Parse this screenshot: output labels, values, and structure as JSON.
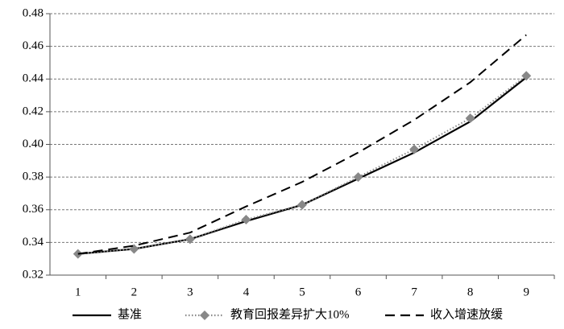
{
  "chart_data": {
    "type": "line",
    "categories": [
      "1",
      "2",
      "3",
      "4",
      "5",
      "6",
      "7",
      "8",
      "9"
    ],
    "series": [
      {
        "name": "基准",
        "color": "#000000",
        "style": "solid",
        "marker": "none",
        "values": [
          0.333,
          0.336,
          0.342,
          0.353,
          0.363,
          0.379,
          0.395,
          0.414,
          0.441
        ]
      },
      {
        "name": "教育回报差异扩大10%",
        "color": "#888888",
        "style": "dotted",
        "marker": "diamond",
        "values": [
          0.333,
          0.336,
          0.342,
          0.354,
          0.363,
          0.38,
          0.397,
          0.416,
          0.442
        ]
      },
      {
        "name": "收入增速放缓",
        "color": "#000000",
        "style": "dashed",
        "marker": "none",
        "values": [
          0.333,
          0.338,
          0.346,
          0.362,
          0.377,
          0.395,
          0.415,
          0.438,
          0.467
        ]
      }
    ],
    "ylim": [
      0.32,
      0.48
    ],
    "yticks": [
      0.32,
      0.34,
      0.36,
      0.38,
      {
        "value": 0.4,
        "label": "0.40"
      },
      0.42,
      0.44,
      0.46,
      0.48
    ],
    "grid": true,
    "legend": "bottom"
  }
}
